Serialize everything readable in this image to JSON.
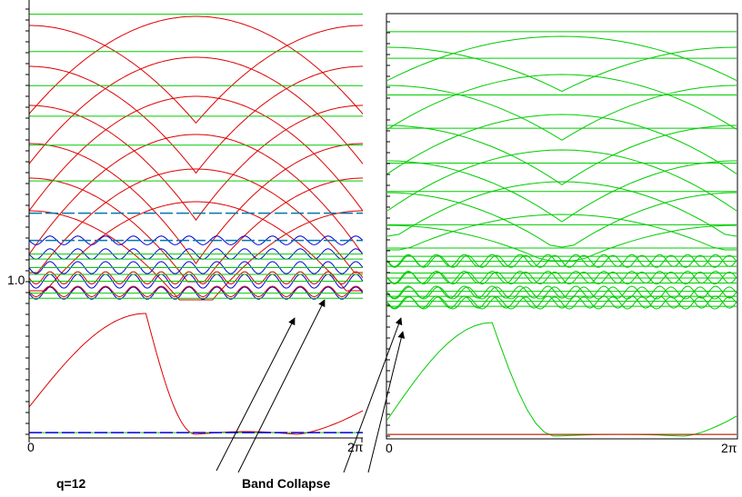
{
  "chart_data": [
    {
      "type": "line",
      "panel": "left",
      "xlim": [
        0,
        6.2832
      ],
      "ylim": [
        0,
        2.0
      ],
      "x_tick_labels": [
        "0",
        "2π"
      ],
      "y_tick_labels": [
        "1.0"
      ],
      "grid": false,
      "series_colors": {
        "flat": "#00cc00",
        "dispersive": "#dd0000",
        "ripple": "#0000dd"
      },
      "flat_levels": [
        0.01,
        0.8,
        0.83,
        0.9,
        0.94,
        0.98,
        1.03,
        1.06,
        1.14,
        1.3,
        1.49,
        1.7,
        1.87,
        2.05,
        2.25,
        2.47
      ],
      "dashed_levels": [
        1.14,
        1.3
      ],
      "ripple_bands": [
        {
          "center": 0.83,
          "amplitude": 0.025,
          "color": "#0000dd"
        },
        {
          "center": 0.9,
          "amplitude": 0.03,
          "color": "#0000dd"
        },
        {
          "center": 0.98,
          "amplitude": 0.025,
          "color": "#0000dd"
        },
        {
          "center": 1.06,
          "amplitude": 0.02,
          "color": "#0000dd"
        },
        {
          "center": 1.14,
          "amplitude": 0.015,
          "color": "#0000dd"
        },
        {
          "center": 0.84,
          "amplitude": 0.02,
          "color": "#dd0000"
        },
        {
          "center": 0.92,
          "amplitude": 0.025,
          "color": "#dd0000"
        }
      ]
    },
    {
      "type": "line",
      "panel": "right",
      "xlim": [
        0,
        6.2832
      ],
      "ylim": [
        0,
        2.0
      ],
      "x_tick_labels": [
        "0",
        "2π"
      ],
      "grid": false,
      "flat_levels": [
        0.01,
        0.78,
        0.81,
        0.84,
        0.87,
        0.92,
        0.95,
        0.98,
        1.02,
        1.05,
        1.08,
        1.13,
        1.27,
        1.47,
        1.64,
        1.85,
        2.05,
        2.27,
        2.43
      ],
      "ripple_bands": [
        {
          "center": 0.8,
          "amplitude": 0.025,
          "color": "#00cc00"
        },
        {
          "center": 0.86,
          "amplitude": 0.025,
          "color": "#00cc00"
        },
        {
          "center": 0.95,
          "amplitude": 0.025,
          "color": "#00cc00"
        },
        {
          "center": 1.05,
          "amplitude": 0.025,
          "color": "#00cc00"
        }
      ]
    }
  ],
  "annotations": {
    "q_label": "q=12",
    "band_collapse_label": "Band Collapse"
  }
}
